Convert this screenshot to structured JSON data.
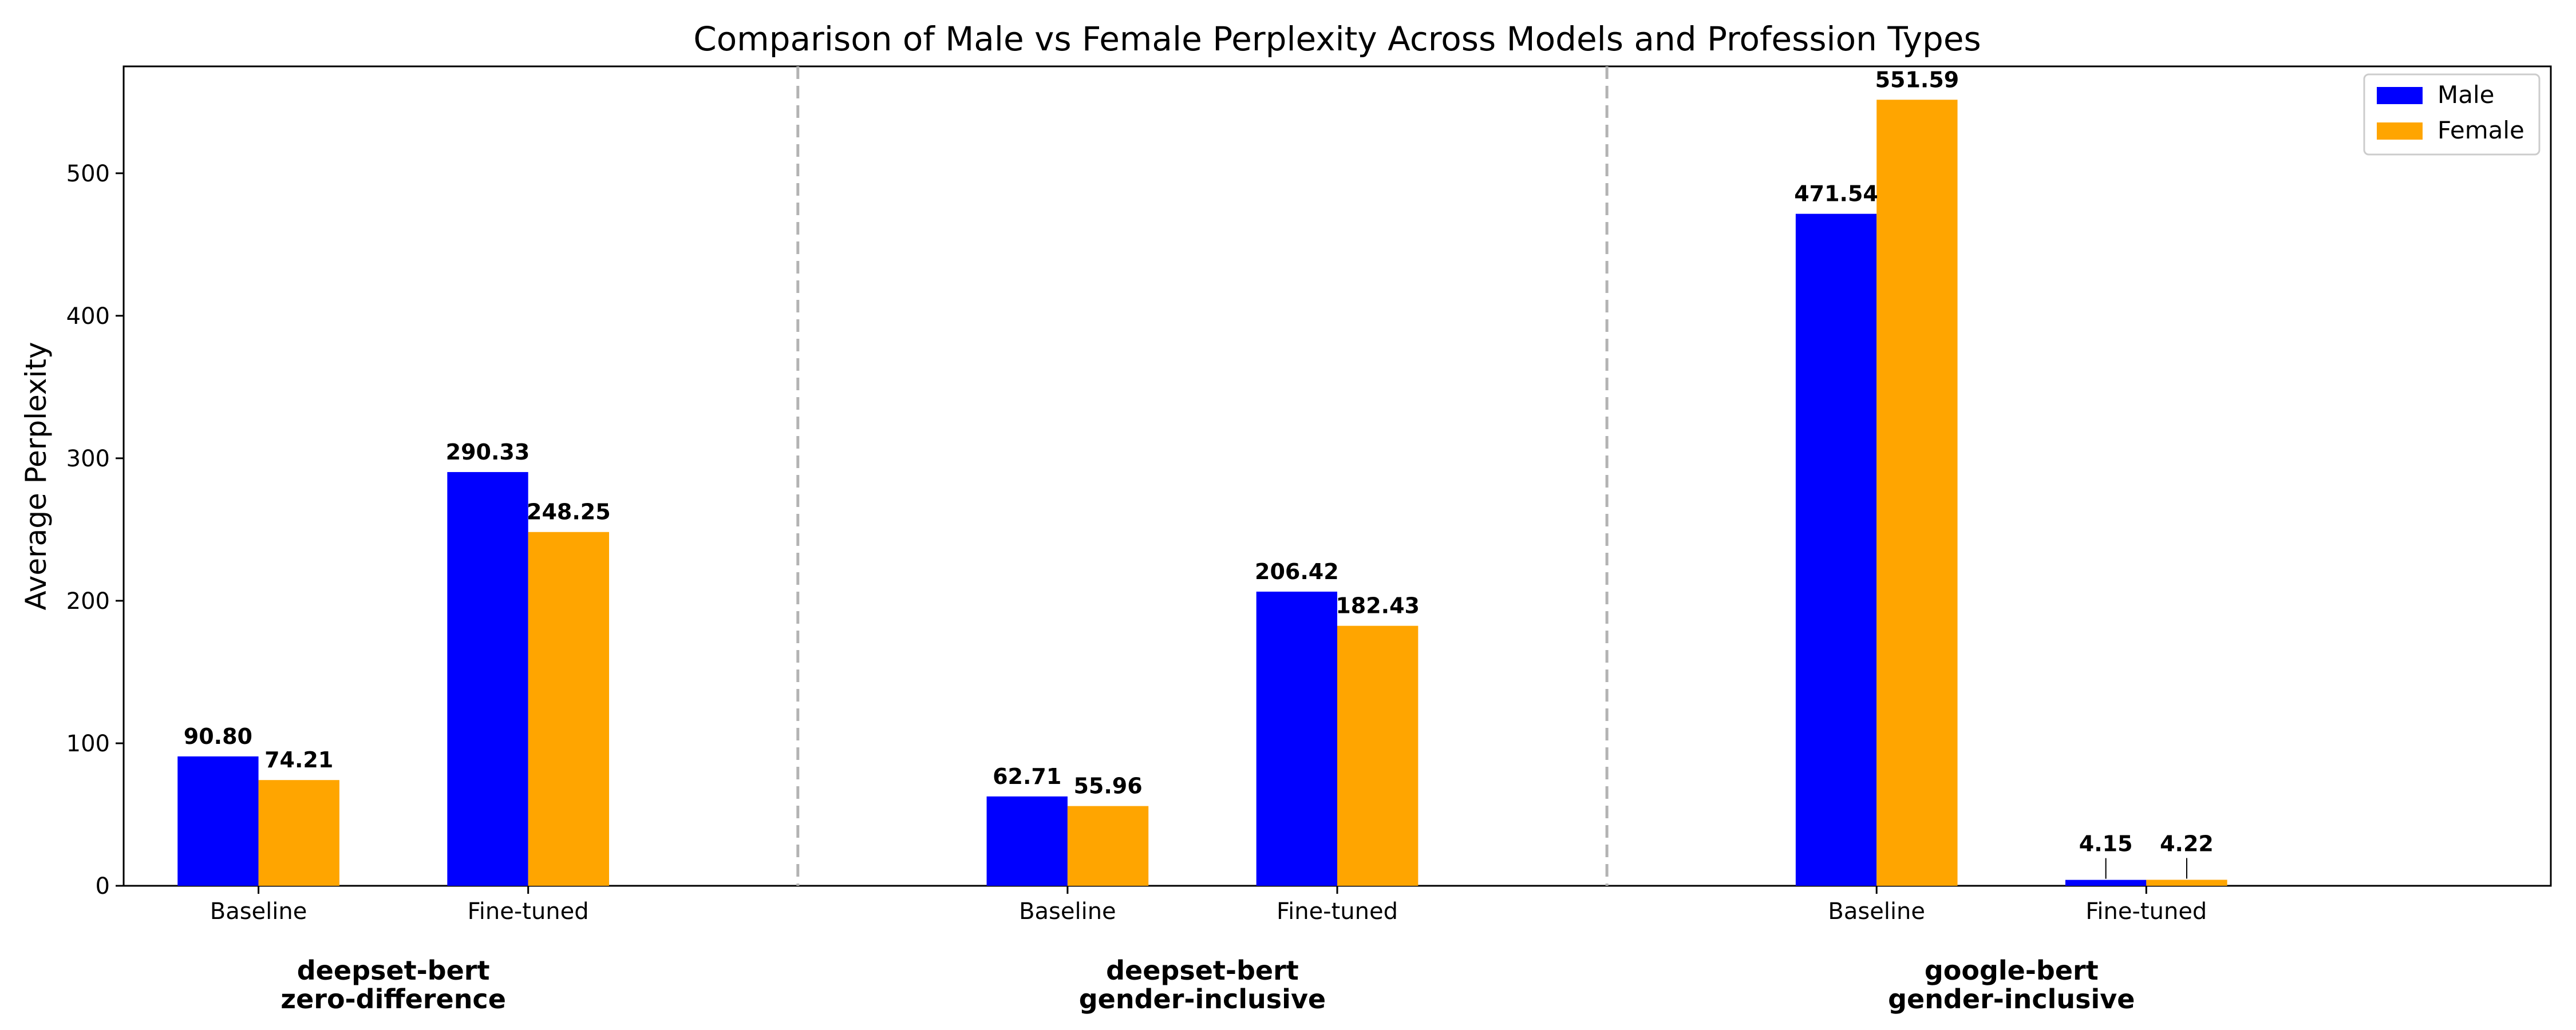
{
  "chart_data": {
    "type": "bar",
    "title": "Comparison of Male vs Female Perplexity Across Models and Profession Types",
    "ylabel": "Average Perplexity",
    "xlabel": "",
    "ylim": [
      0,
      575
    ],
    "yticks": [
      0,
      100,
      200,
      300,
      400,
      500
    ],
    "grid": false,
    "legend_position": "top-right",
    "groups": [
      {
        "line1": "deepset-bert",
        "line2": "zero-difference",
        "categories": [
          "Baseline",
          "Fine-tuned"
        ],
        "male": [
          90.8,
          290.33
        ],
        "female": [
          74.21,
          248.25
        ]
      },
      {
        "line1": "deepset-bert",
        "line2": "gender-inclusive",
        "categories": [
          "Baseline",
          "Fine-tuned"
        ],
        "male": [
          62.71,
          206.42
        ],
        "female": [
          55.96,
          182.43
        ]
      },
      {
        "line1": "google-bert",
        "line2": "gender-inclusive",
        "categories": [
          "Baseline",
          "Fine-tuned"
        ],
        "male": [
          471.54,
          4.15
        ],
        "female": [
          551.59,
          4.22
        ]
      }
    ],
    "series": [
      {
        "name": "Male",
        "color": "#0000ff"
      },
      {
        "name": "Female",
        "color": "#ffa500"
      }
    ],
    "separator_style": "dashed-gray"
  }
}
